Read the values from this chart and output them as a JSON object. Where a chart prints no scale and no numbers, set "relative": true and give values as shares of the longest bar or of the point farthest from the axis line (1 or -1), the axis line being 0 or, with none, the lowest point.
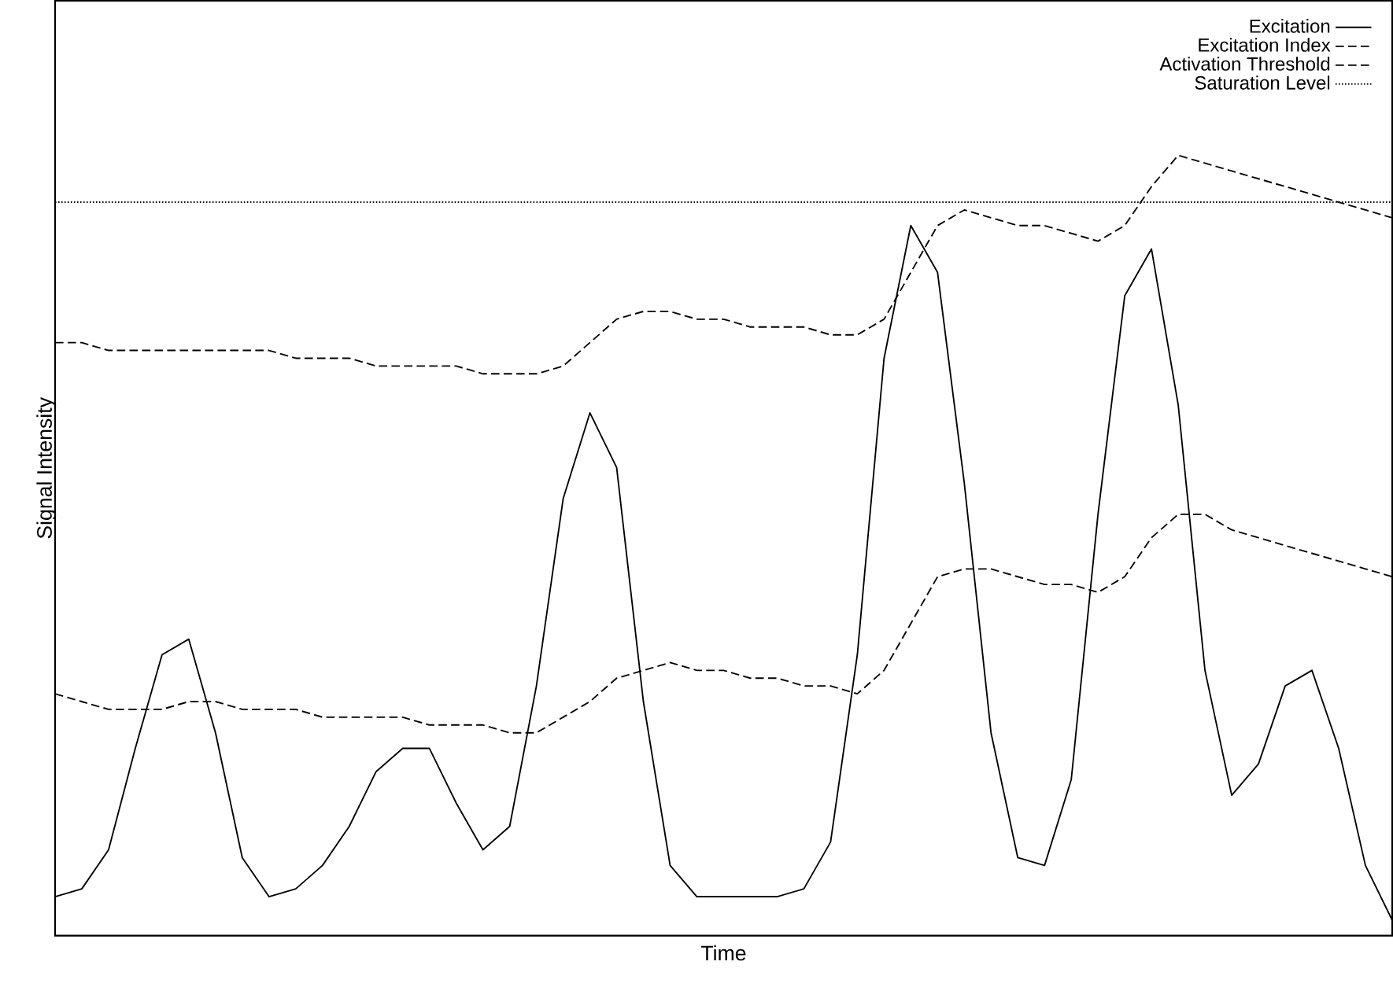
{
  "chart_data": {
    "type": "line",
    "relative": true,
    "xlabel": "Time",
    "ylabel": "Signal Intensity",
    "legend": "top right",
    "marker": "none",
    "categories": [
      null,
      null,
      null,
      null,
      null,
      null,
      null,
      null,
      null,
      null,
      null,
      null,
      null,
      null,
      null,
      null,
      null,
      null,
      null,
      null,
      null,
      null,
      null,
      null,
      null,
      null,
      null,
      null,
      null,
      null,
      null,
      null,
      null,
      null,
      null,
      null,
      null,
      null,
      null,
      null,
      null,
      null,
      null,
      null,
      null,
      null,
      null,
      null,
      null,
      null,
      null
    ],
    "series": [
      {
        "name": "Excitation",
        "color": "#000000",
        "line_style": "solid",
        "values": [
          0.05,
          0.06,
          0.11,
          0.24,
          0.36,
          0.38,
          0.26,
          0.1,
          0.05,
          0.06,
          0.09,
          0.14,
          0.21,
          0.24,
          0.24,
          0.17,
          0.11,
          0.14,
          0.32,
          0.56,
          0.67,
          0.6,
          0.3,
          0.09,
          0.05,
          0.05,
          0.05,
          0.05,
          0.06,
          0.12,
          0.36,
          0.74,
          0.91,
          0.85,
          0.58,
          0.26,
          0.1,
          0.09,
          0.2,
          0.54,
          0.82,
          0.88,
          0.68,
          0.34,
          0.18,
          0.22,
          0.32,
          0.34,
          0.24,
          0.09,
          0.02
        ]
      },
      {
        "name": "Excitation Index",
        "color": "#000000",
        "line_style": "dashed",
        "values": [
          0.31,
          0.3,
          0.29,
          0.29,
          0.29,
          0.3,
          0.3,
          0.29,
          0.29,
          0.29,
          0.28,
          0.28,
          0.28,
          0.28,
          0.27,
          0.27,
          0.27,
          0.26,
          0.26,
          0.28,
          0.3,
          0.33,
          0.34,
          0.35,
          0.34,
          0.34,
          0.33,
          0.33,
          0.32,
          0.32,
          0.31,
          0.34,
          0.4,
          0.46,
          0.47,
          0.47,
          0.46,
          0.45,
          0.45,
          0.44,
          0.46,
          0.51,
          0.54,
          0.54,
          0.52,
          0.51,
          0.5,
          0.49,
          0.48,
          0.47,
          0.46
        ]
      },
      {
        "name": "Activation Threshold",
        "color": "#000000",
        "line_style": "dashed",
        "values": [
          0.76,
          0.76,
          0.75,
          0.75,
          0.75,
          0.75,
          0.75,
          0.75,
          0.75,
          0.74,
          0.74,
          0.74,
          0.73,
          0.73,
          0.73,
          0.73,
          0.72,
          0.72,
          0.72,
          0.73,
          0.76,
          0.79,
          0.8,
          0.8,
          0.79,
          0.79,
          0.78,
          0.78,
          0.78,
          0.77,
          0.77,
          0.79,
          0.85,
          0.91,
          0.93,
          0.92,
          0.91,
          0.91,
          0.9,
          0.89,
          0.91,
          0.96,
          1.0,
          0.99,
          0.98,
          0.97,
          0.96,
          0.95,
          0.94,
          0.93,
          0.92
        ]
      },
      {
        "name": "Saturation Level",
        "color": "#000000",
        "line_style": "dotted",
        "values": [
          0.94,
          0.94,
          0.94,
          0.94,
          0.94,
          0.94,
          0.94,
          0.94,
          0.94,
          0.94,
          0.94,
          0.94,
          0.94,
          0.94,
          0.94,
          0.94,
          0.94,
          0.94,
          0.94,
          0.94,
          0.94,
          0.94,
          0.94,
          0.94,
          0.94,
          0.94,
          0.94,
          0.94,
          0.94,
          0.94,
          0.94,
          0.94,
          0.94,
          0.94,
          0.94,
          0.94,
          0.94,
          0.94,
          0.94,
          0.94,
          0.94,
          0.94,
          0.94,
          0.94,
          0.94,
          0.94,
          0.94,
          0.94,
          0.94,
          0.94,
          0.94
        ]
      }
    ]
  }
}
